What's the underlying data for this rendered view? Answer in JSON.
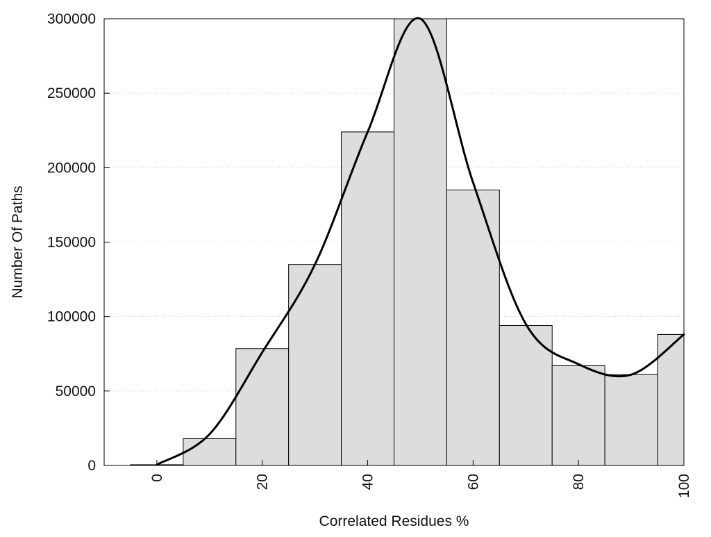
{
  "chart_data": {
    "type": "bar",
    "title": "",
    "xlabel": "Correlated Residues %",
    "ylabel": "Number Of Paths",
    "xlim": [
      -10,
      100
    ],
    "ylim": [
      0,
      300000
    ],
    "x_ticks": [
      0,
      20,
      40,
      60,
      80,
      100
    ],
    "x_tick_labels": [
      "0",
      "20",
      "40",
      "60",
      "80",
      "100"
    ],
    "y_ticks": [
      0,
      50000,
      100000,
      150000,
      200000,
      250000,
      300000
    ],
    "y_tick_labels": [
      "0",
      "50000",
      "100000",
      "150000",
      "200000",
      "250000",
      "300000"
    ],
    "grid": "horizontal dotted",
    "bin_centers": [
      0,
      10,
      20,
      30,
      40,
      50,
      60,
      70,
      80,
      90,
      100
    ],
    "bin_width": 10,
    "values": [
      500,
      18000,
      78500,
      135000,
      224000,
      300000,
      185000,
      94000,
      67000,
      61000,
      88000
    ],
    "bar_color": "#dddddd",
    "bar_edge_color": "#000000",
    "density_curve": {
      "x": [
        0,
        10,
        20,
        30,
        40,
        50,
        60,
        70,
        80,
        90,
        100
      ],
      "y": [
        500,
        21000,
        76000,
        135000,
        224000,
        300000,
        190000,
        95000,
        68000,
        61000,
        88000
      ],
      "color": "#000000"
    }
  }
}
